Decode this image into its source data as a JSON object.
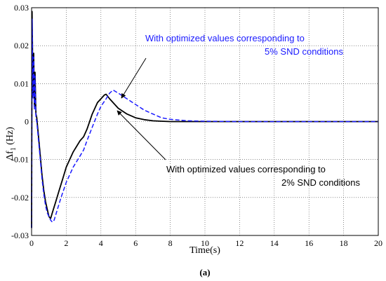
{
  "figure": {
    "caption": "(a)"
  },
  "chart_data": {
    "type": "line",
    "xlabel": "Time(s)",
    "ylabel": "Δf",
    "ylabel_subscript": "1",
    "ylabel_unit": " (Hz)",
    "xlim": [
      0,
      20
    ],
    "ylim": [
      -0.03,
      0.03
    ],
    "xticks": [
      0,
      2,
      4,
      6,
      8,
      10,
      12,
      14,
      16,
      18,
      20
    ],
    "yticks": [
      0.03,
      0.02,
      0.01,
      0,
      -0.01,
      -0.02,
      -0.03
    ],
    "ytick_labels": [
      "0.03",
      "0.02",
      "0.01",
      "0",
      "-0.01",
      "-0.02",
      "-0.03"
    ],
    "grid": true,
    "series": [
      {
        "color": "#000000",
        "dash": "solid",
        "x": [
          0,
          0.03,
          0.08,
          0.12,
          0.16,
          0.2,
          0.25,
          0.3,
          0.4,
          0.5,
          0.6,
          0.7,
          0.8,
          0.9,
          1.0,
          1.05,
          1.1,
          1.2,
          1.4,
          1.6,
          1.8,
          2.0,
          2.4,
          2.8,
          3.0,
          3.2,
          3.5,
          3.8,
          4.0,
          4.2,
          4.3,
          4.5,
          4.8,
          5.0,
          5.5,
          6.0,
          6.5,
          7.0,
          7.5,
          8.0,
          9.0,
          10,
          12,
          14,
          16,
          18,
          20
        ],
        "y": [
          -0.028,
          0.029,
          0.007,
          0.018,
          0.004,
          0.013,
          0.002,
          0.001,
          -0.004,
          -0.009,
          -0.014,
          -0.018,
          -0.021,
          -0.023,
          -0.025,
          -0.0253,
          -0.0255,
          -0.024,
          -0.021,
          -0.018,
          -0.015,
          -0.012,
          -0.008,
          -0.005,
          -0.004,
          -0.002,
          0.002,
          0.005,
          0.006,
          0.007,
          0.0072,
          0.006,
          0.0045,
          0.0035,
          0.002,
          0.001,
          0.0005,
          0.0002,
          0.0001,
          0,
          0,
          0,
          0,
          0,
          0,
          0,
          0
        ]
      },
      {
        "color": "#1a1aff",
        "dash": "dashed",
        "x": [
          0,
          0.03,
          0.08,
          0.12,
          0.16,
          0.2,
          0.25,
          0.3,
          0.4,
          0.5,
          0.6,
          0.7,
          0.8,
          0.9,
          1.0,
          1.1,
          1.2,
          1.3,
          1.5,
          1.7,
          2.0,
          2.4,
          2.8,
          3.0,
          3.2,
          3.5,
          3.8,
          4.0,
          4.3,
          4.5,
          4.7,
          5.0,
          5.5,
          6.0,
          6.5,
          7.0,
          7.5,
          8.0,
          9.0,
          10,
          12,
          14,
          16,
          18,
          20
        ],
        "y": [
          -0.028,
          0.027,
          0.006,
          0.017,
          0.003,
          0.012,
          0.001,
          0.0,
          -0.005,
          -0.01,
          -0.015,
          -0.019,
          -0.022,
          -0.024,
          -0.025,
          -0.026,
          -0.0265,
          -0.026,
          -0.023,
          -0.02,
          -0.016,
          -0.012,
          -0.009,
          -0.0075,
          -0.005,
          -0.0015,
          0.002,
          0.004,
          0.006,
          0.0075,
          0.0083,
          0.0075,
          0.006,
          0.0045,
          0.003,
          0.002,
          0.001,
          0.0006,
          0.0002,
          0.0001,
          0,
          0,
          0,
          0,
          0
        ]
      }
    ],
    "annotations": [
      {
        "lines": [
          "With optimized values corresponding to",
          "5% SND conditions"
        ],
        "color": "#1a1aff"
      },
      {
        "lines": [
          "With optimized values corresponding to",
          "2% SND conditions"
        ],
        "color": "#000000"
      }
    ]
  }
}
